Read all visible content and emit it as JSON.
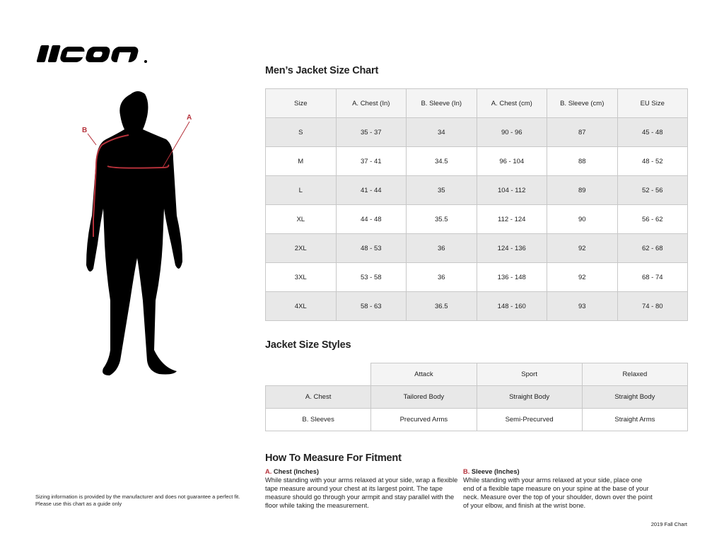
{
  "brand": {
    "logo_text": "icon"
  },
  "figure": {
    "label_a": "A",
    "label_b": "B",
    "accent_color": "#b5313a"
  },
  "size_chart": {
    "title": "Men’s Jacket Size Chart",
    "headers": [
      "Size",
      "A. Chest (In)",
      "B. Sleeve (In)",
      "A. Chest (cm)",
      "B. Sleeve (cm)",
      "EU Size"
    ],
    "rows": [
      [
        "S",
        "35 - 37",
        "34",
        "90 - 96",
        "87",
        "45 - 48"
      ],
      [
        "M",
        "37 - 41",
        "34.5",
        "96 - 104",
        "88",
        "48 - 52"
      ],
      [
        "L",
        "41 - 44",
        "35",
        "104 - 112",
        "89",
        "52 - 56"
      ],
      [
        "XL",
        "44 - 48",
        "35.5",
        "112 - 124",
        "90",
        "56 - 62"
      ],
      [
        "2XL",
        "48 - 53",
        "36",
        "124 - 136",
        "92",
        "62 - 68"
      ],
      [
        "3XL",
        "53 - 58",
        "36",
        "136 - 148",
        "92",
        "68 - 74"
      ],
      [
        "4XL",
        "58 - 63",
        "36.5",
        "148 - 160",
        "93",
        "74 - 80"
      ]
    ]
  },
  "styles": {
    "title": "Jacket Size Styles",
    "headers": [
      "",
      "Attack",
      "Sport",
      "Relaxed"
    ],
    "rows": [
      [
        "A. Chest",
        "Tailored Body",
        "Straight Body",
        "Straight Body"
      ],
      [
        "B. Sleeves",
        "Precurved Arms",
        "Semi-Precurved",
        "Straight Arms"
      ]
    ]
  },
  "measure": {
    "title": "How To Measure For Fitment",
    "chest": {
      "letter": "A.",
      "heading": "Chest (Inches)",
      "text": "While standing with your arms relaxed at your side, wrap a flexible tape measure around your chest at its largest point. The tape measure should go through your armpit and stay parallel with the floor while taking the measurement."
    },
    "sleeve": {
      "letter": "B.",
      "heading": "Sleeve (Inches)",
      "text": "While standing with your arms relaxed at your side, place one end of a flexible tape measure on your spine at the base of your neck. Measure over the top of your shoulder, down over the point of your elbow, and finish at the wrist bone."
    }
  },
  "disclaimer": {
    "line1": "Sizing information is provided by the manufacturer and does not guarantee a perfect fit.",
    "line2": "Please use this chart as a guide only"
  },
  "footer": "2019 Fall Chart"
}
